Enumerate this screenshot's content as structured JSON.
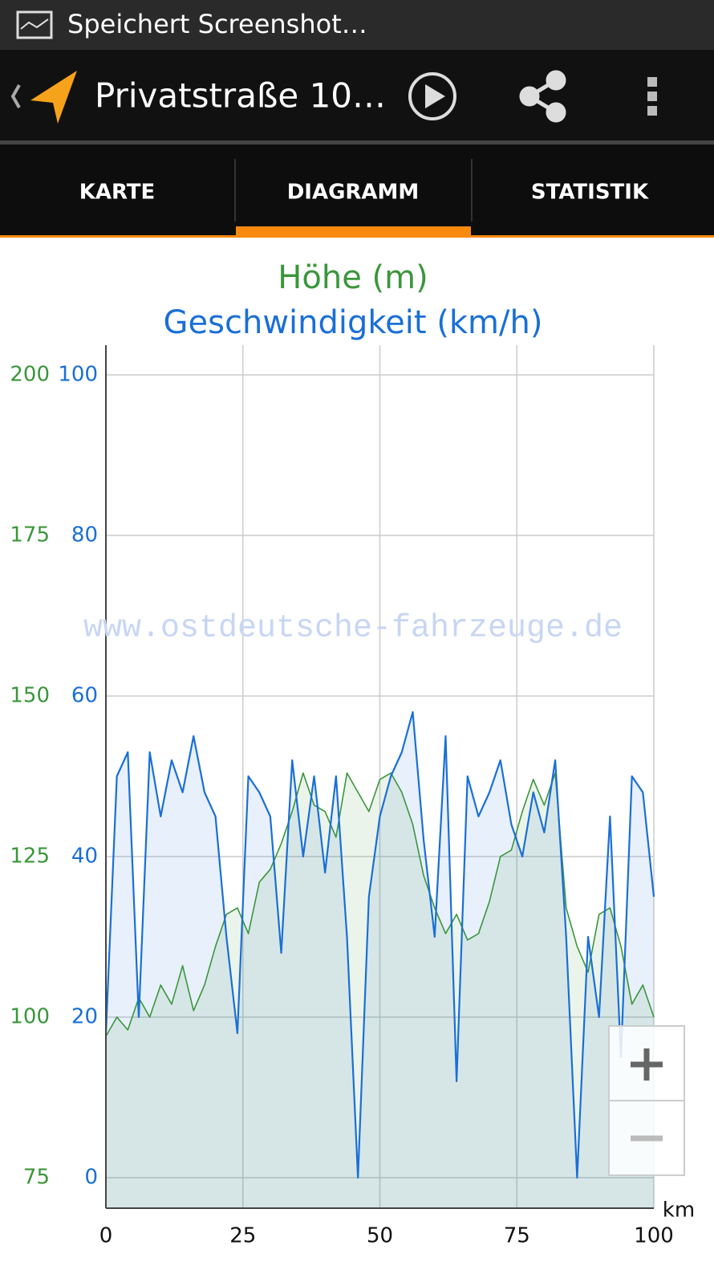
{
  "status_bar": {
    "text": "Speichert Screenshot…"
  },
  "app_bar": {
    "title": "Privatstraße 10…"
  },
  "tabs": [
    "KARTE",
    "DIAGRAMM",
    "STATISTIK"
  ],
  "watermark": "www.ostdeutsche-fahrzeuge.de",
  "chart_data": {
    "type": "line",
    "x": [
      0,
      2,
      4,
      6,
      8,
      10,
      12,
      14,
      16,
      18,
      20,
      22,
      24,
      26,
      28,
      30,
      32,
      34,
      36,
      38,
      40,
      42,
      44,
      46,
      48,
      50,
      52,
      54,
      56,
      58,
      60,
      62,
      64,
      66,
      68,
      70,
      72,
      74,
      76,
      78,
      80,
      82,
      84,
      86,
      88,
      90,
      92,
      94,
      96,
      98,
      100
    ],
    "xlabel": "km",
    "xlim": [
      0,
      100
    ],
    "xticks": [
      0,
      25,
      50,
      75,
      100
    ],
    "ylim": [
      -3.8,
      103.7
    ],
    "yticks": [
      0,
      20,
      40,
      60,
      80,
      100
    ],
    "y2lim": [
      70.25,
      204.6
    ],
    "y2ticks": [
      75,
      100,
      125,
      150,
      175,
      200
    ],
    "grid": true,
    "series": [
      {
        "name": "Höhe (m)",
        "color": "#3b963b",
        "axis": "y2",
        "values": [
          97,
          100,
          98,
          103,
          100,
          105,
          102,
          108,
          101,
          105,
          111,
          116,
          117,
          113,
          121,
          123,
          127,
          132,
          138,
          133,
          132,
          128,
          138,
          135,
          132,
          137,
          138,
          135,
          130,
          122,
          117,
          113,
          116,
          112,
          113,
          118,
          125,
          126,
          132,
          137,
          133,
          138,
          117,
          111,
          107,
          116,
          117,
          111,
          102,
          105,
          100
        ]
      },
      {
        "name": "Geschwindigkeit (km/h)",
        "color": "#1a6fd6",
        "values": [
          18,
          50,
          53,
          20,
          53,
          45,
          52,
          48,
          55,
          48,
          45,
          30,
          18,
          50,
          48,
          45,
          28,
          52,
          40,
          50,
          38,
          50,
          30,
          0,
          35,
          45,
          50,
          53,
          58,
          42,
          30,
          55,
          12,
          50,
          45,
          48,
          52,
          44,
          40,
          48,
          43,
          52,
          30,
          0,
          30,
          20,
          45,
          15,
          50,
          48,
          35
        ]
      }
    ]
  }
}
